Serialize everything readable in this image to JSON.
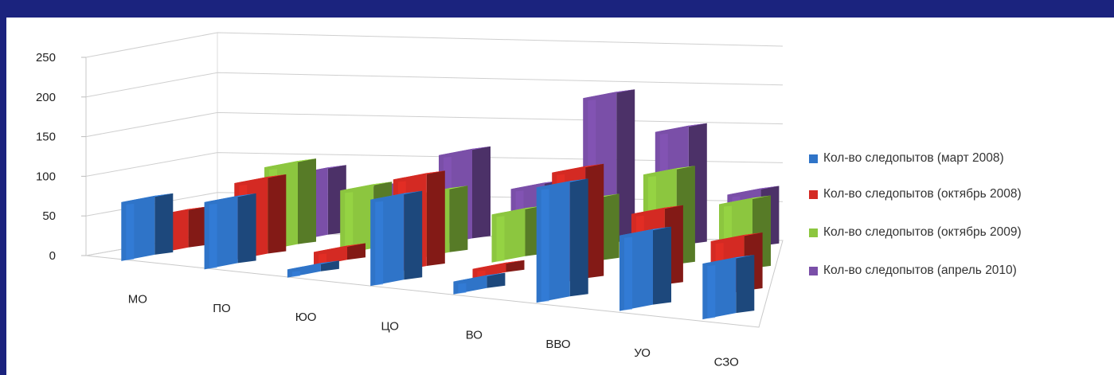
{
  "chart_data": {
    "type": "bar",
    "subtype": "3d-clustered-column",
    "categories": [
      "МО",
      "ПО",
      "ЮО",
      "ЦО",
      "ВО",
      "ВВО",
      "УО",
      "СЗО"
    ],
    "series": [
      {
        "name": "Кол-во следопытов (март 2008)",
        "color": "#2f74c8",
        "values": [
          92,
          105,
          13,
          135,
          20,
          180,
          118,
          87
        ]
      },
      {
        "name": "Кол-во следопытов (октябрь 2008)",
        "color": "#d42a23",
        "values": [
          60,
          120,
          22,
          145,
          15,
          175,
          120,
          87
        ]
      },
      {
        "name": "Кол-во следопытов (октябрь 2009)",
        "color": "#8cc63f",
        "values": [
          45,
          130,
          100,
          100,
          75,
          100,
          150,
          110
        ]
      },
      {
        "name": "Кол-во следопытов (апрель 2010)",
        "color": "#7a4fa8",
        "values": [
          0,
          105,
          85,
          140,
          90,
          235,
          185,
          90
        ]
      }
    ],
    "y_ticks": [
      "0",
      "50",
      "100",
      "150",
      "200",
      "250"
    ],
    "ylim": [
      0,
      250
    ],
    "grid": true,
    "legend_position": "right"
  }
}
